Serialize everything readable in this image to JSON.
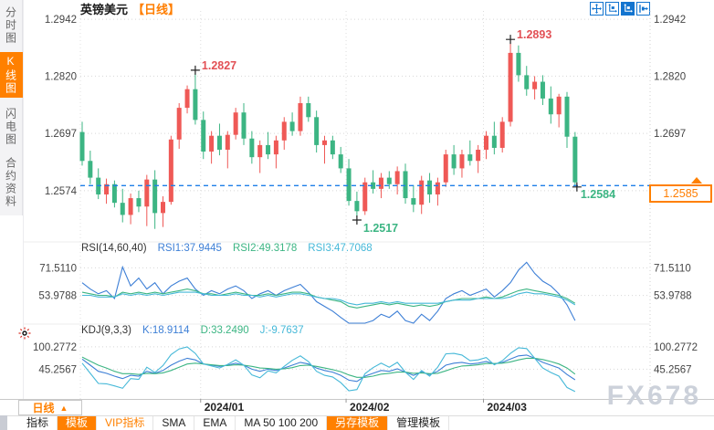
{
  "header": {
    "symbol": "英镑美元",
    "period": "【日线】"
  },
  "sidebar": {
    "items": [
      {
        "label": "分时图",
        "active": false
      },
      {
        "label": "K线图",
        "active": true
      },
      {
        "label": "闪电图",
        "active": false
      },
      {
        "label": "合约资料",
        "active": false
      }
    ]
  },
  "top_buttons": [
    {
      "name": "pan-tool"
    },
    {
      "name": "axis-scale"
    },
    {
      "name": "axis-scale-active"
    },
    {
      "name": "exit-right"
    }
  ],
  "price_box": {
    "value": "1.2585"
  },
  "watermark": "FX678",
  "bottom": {
    "period_button": {
      "label": "日线",
      "arrow": "▲"
    },
    "toolbar": [
      {
        "label": "指标",
        "style": "plain"
      },
      {
        "label": "模板",
        "style": "orange-bg"
      },
      {
        "label": "VIP指标",
        "style": "orange-text"
      },
      {
        "label": "SMA",
        "style": "plain"
      },
      {
        "label": "EMA",
        "style": "plain"
      },
      {
        "label": "MA 50 100 200",
        "style": "plain"
      },
      {
        "label": "另存模板",
        "style": "orange-bg"
      },
      {
        "label": "管理模板",
        "style": "plain"
      }
    ]
  },
  "colors": {
    "accent": "#ff8000",
    "up": "#ef5956",
    "down": "#3cb583",
    "current_line": "#1f7fe8",
    "blue": "#3d7fd6",
    "green": "#3cb583",
    "cyan": "#45b8d8",
    "annotation_red": "#e25055",
    "annotation_green": "#3cb583"
  },
  "chart_data": [
    {
      "type": "candlestick",
      "symbol": "英镑美元",
      "period": "日线",
      "ylim": [
        1.2464,
        1.296
      ],
      "yticks": [
        {
          "v": 1.2942,
          "label": "1.2942"
        },
        {
          "v": 1.282,
          "label": "1.2820"
        },
        {
          "v": 1.2697,
          "label": "1.2697"
        },
        {
          "v": 1.2574,
          "label": "1.2574"
        }
      ],
      "x_ticks": [
        {
          "index": 15,
          "label": "2024/01"
        },
        {
          "index": 33,
          "label": "2024/02"
        },
        {
          "index": 50,
          "label": "2024/03"
        }
      ],
      "current_price": {
        "value": 1.2585,
        "label": "1.2585"
      },
      "annotations": [
        {
          "text": "1.2827",
          "index": 14,
          "price": 1.2827,
          "color": "#e25055",
          "side": "top"
        },
        {
          "text": "1.2893",
          "index": 53,
          "price": 1.2893,
          "color": "#e25055",
          "side": "top"
        },
        {
          "text": "1.2517",
          "index": 34,
          "price": 1.2517,
          "color": "#3cb583",
          "side": "bottom"
        },
        {
          "text": "1.2584",
          "index": 61,
          "price": 1.2584,
          "color": "#3cb583",
          "side": "right-below"
        }
      ],
      "ohlc": [
        [
          1.27,
          1.2722,
          1.2628,
          1.2638
        ],
        [
          1.2638,
          1.266,
          1.2588,
          1.2602
        ],
        [
          1.2602,
          1.2622,
          1.2556,
          1.2566
        ],
        [
          1.2566,
          1.26,
          1.2546,
          1.2588
        ],
        [
          1.2588,
          1.2596,
          1.2538,
          1.2548
        ],
        [
          1.2548,
          1.2578,
          1.2506,
          1.2522
        ],
        [
          1.2522,
          1.2568,
          1.2502,
          1.2558
        ],
        [
          1.2558,
          1.2574,
          1.2528,
          1.254
        ],
        [
          1.254,
          1.2608,
          1.2498,
          1.2598
        ],
        [
          1.2598,
          1.2618,
          1.2492,
          1.2526
        ],
        [
          1.2526,
          1.2562,
          1.2496,
          1.255
        ],
        [
          1.255,
          1.2692,
          1.2544,
          1.2684
        ],
        [
          1.2684,
          1.2762,
          1.2664,
          1.2752
        ],
        [
          1.2752,
          1.28,
          1.274,
          1.2792
        ],
        [
          1.2792,
          1.2827,
          1.2716,
          1.2726
        ],
        [
          1.2726,
          1.2744,
          1.2642,
          1.2658
        ],
        [
          1.2658,
          1.2702,
          1.2632,
          1.2692
        ],
        [
          1.2692,
          1.2718,
          1.265,
          1.2662
        ],
        [
          1.2662,
          1.2702,
          1.2622,
          1.2694
        ],
        [
          1.2694,
          1.2752,
          1.2684,
          1.2742
        ],
        [
          1.2742,
          1.2762,
          1.2672,
          1.2686
        ],
        [
          1.2686,
          1.2702,
          1.2632,
          1.2646
        ],
        [
          1.2646,
          1.2682,
          1.2612,
          1.2672
        ],
        [
          1.2672,
          1.27,
          1.2642,
          1.2652
        ],
        [
          1.2652,
          1.2692,
          1.2622,
          1.2682
        ],
        [
          1.2682,
          1.2732,
          1.2662,
          1.2722
        ],
        [
          1.2722,
          1.2742,
          1.2692,
          1.2702
        ],
        [
          1.2702,
          1.2776,
          1.2692,
          1.2762
        ],
        [
          1.2762,
          1.2776,
          1.2722,
          1.2732
        ],
        [
          1.2732,
          1.2746,
          1.2656,
          1.2672
        ],
        [
          1.2672,
          1.2692,
          1.2632,
          1.2682
        ],
        [
          1.2682,
          1.2692,
          1.2642,
          1.2652
        ],
        [
          1.2652,
          1.2668,
          1.2612,
          1.2622
        ],
        [
          1.2622,
          1.2642,
          1.2542,
          1.2552
        ],
        [
          1.2552,
          1.2572,
          1.2517,
          1.253
        ],
        [
          1.253,
          1.2602,
          1.2522,
          1.2592
        ],
        [
          1.2592,
          1.2618,
          1.2568,
          1.2578
        ],
        [
          1.2578,
          1.2612,
          1.2558,
          1.2602
        ],
        [
          1.2602,
          1.2616,
          1.2578,
          1.2588
        ],
        [
          1.2588,
          1.2626,
          1.2566,
          1.2616
        ],
        [
          1.2616,
          1.2632,
          1.2546,
          1.2558
        ],
        [
          1.2558,
          1.2586,
          1.2528,
          1.2544
        ],
        [
          1.2544,
          1.2606,
          1.2524,
          1.2596
        ],
        [
          1.2596,
          1.2612,
          1.2548,
          1.2566
        ],
        [
          1.2566,
          1.2602,
          1.2542,
          1.2592
        ],
        [
          1.2592,
          1.2662,
          1.2582,
          1.2652
        ],
        [
          1.2652,
          1.2672,
          1.2608,
          1.2622
        ],
        [
          1.2622,
          1.2662,
          1.2602,
          1.2652
        ],
        [
          1.2652,
          1.2682,
          1.2628,
          1.2638
        ],
        [
          1.2638,
          1.2672,
          1.2612,
          1.2662
        ],
        [
          1.2662,
          1.2702,
          1.2642,
          1.2692
        ],
        [
          1.2692,
          1.2722,
          1.2652,
          1.2666
        ],
        [
          1.2666,
          1.2732,
          1.2656,
          1.2722
        ],
        [
          1.2722,
          1.2893,
          1.2712,
          1.287
        ],
        [
          1.287,
          1.2886,
          1.2808,
          1.2822
        ],
        [
          1.2822,
          1.2842,
          1.2778,
          1.2792
        ],
        [
          1.2792,
          1.282,
          1.277,
          1.2808
        ],
        [
          1.2808,
          1.2822,
          1.2758,
          1.2772
        ],
        [
          1.2772,
          1.2798,
          1.2718,
          1.2738
        ],
        [
          1.2738,
          1.2782,
          1.271,
          1.2776
        ],
        [
          1.2776,
          1.2786,
          1.2666,
          1.269
        ],
        [
          1.269,
          1.27,
          1.2584,
          1.2592
        ]
      ]
    },
    {
      "type": "line",
      "title": "RSI(14,60,40)",
      "legend": [
        "RSI1:37.9445",
        "RSI2:49.3178",
        "RSI3:47.7068"
      ],
      "yticks": [
        {
          "v": 71.511,
          "label": "71.5110"
        },
        {
          "v": 53.9788,
          "label": "53.9788"
        }
      ],
      "series": [
        {
          "name": "RSI1",
          "color": "#3d7fd6",
          "values": [
            62,
            58,
            55,
            57,
            52,
            72,
            60,
            65,
            58,
            62,
            55,
            60,
            63,
            65,
            58,
            54,
            57,
            55,
            58,
            60,
            57,
            52,
            55,
            57,
            54,
            57,
            59,
            61,
            56,
            50,
            47,
            44,
            40,
            28,
            24,
            33,
            38,
            42,
            40,
            44,
            38,
            35,
            42,
            38,
            44,
            52,
            55,
            57,
            54,
            56,
            58,
            53,
            57,
            62,
            70,
            75,
            68,
            63,
            60,
            55,
            48,
            38
          ]
        },
        {
          "name": "RSI2",
          "color": "#3cb583",
          "values": [
            56,
            55,
            54,
            54,
            53,
            56,
            55,
            56,
            55,
            56,
            55,
            56,
            57,
            58,
            57,
            55,
            55,
            54,
            55,
            56,
            55,
            54,
            54,
            55,
            54,
            55,
            56,
            56,
            55,
            53,
            52,
            51,
            50,
            47,
            46,
            47,
            48,
            49,
            48,
            49,
            48,
            47,
            48,
            47,
            48,
            50,
            51,
            52,
            52,
            52,
            53,
            52,
            53,
            55,
            57,
            58,
            57,
            56,
            55,
            54,
            52,
            49
          ]
        },
        {
          "name": "RSI3",
          "color": "#45b8d8",
          "values": [
            54,
            54,
            53,
            53,
            53,
            55,
            54,
            55,
            54,
            55,
            54,
            55,
            56,
            56,
            56,
            55,
            54,
            54,
            54,
            55,
            54,
            54,
            53,
            54,
            53,
            54,
            55,
            55,
            54,
            53,
            52,
            52,
            51,
            49,
            48,
            49,
            49,
            50,
            49,
            50,
            49,
            49,
            49,
            49,
            49,
            50,
            51,
            51,
            51,
            52,
            52,
            52,
            52,
            53,
            55,
            56,
            55,
            55,
            54,
            53,
            51,
            48
          ]
        }
      ]
    },
    {
      "type": "line",
      "title": "KDJ(9,3,3)",
      "legend": [
        "K:18.9114",
        "D:33.2490",
        "J:-9.7637"
      ],
      "yticks": [
        {
          "v": 100.2772,
          "label": "100.2772"
        },
        {
          "v": 45.2567,
          "label": "45.2567"
        }
      ],
      "series": [
        {
          "name": "K",
          "color": "#3d7fd6",
          "values": [
            70,
            55,
            40,
            35,
            28,
            22,
            30,
            28,
            40,
            35,
            42,
            55,
            65,
            72,
            68,
            58,
            55,
            52,
            55,
            60,
            55,
            45,
            40,
            45,
            42,
            48,
            55,
            62,
            58,
            48,
            42,
            38,
            30,
            18,
            15,
            28,
            35,
            42,
            40,
            46,
            38,
            30,
            38,
            32,
            40,
            55,
            60,
            62,
            58,
            60,
            64,
            58,
            62,
            70,
            78,
            80,
            72,
            62,
            55,
            48,
            32,
            19
          ]
        },
        {
          "name": "D",
          "color": "#3cb583",
          "values": [
            75,
            65,
            55,
            48,
            40,
            34,
            34,
            32,
            35,
            34,
            36,
            42,
            50,
            58,
            60,
            58,
            56,
            54,
            54,
            56,
            55,
            52,
            48,
            47,
            45,
            46,
            49,
            54,
            55,
            52,
            48,
            44,
            39,
            31,
            25,
            25,
            28,
            33,
            35,
            38,
            38,
            35,
            36,
            34,
            35,
            41,
            48,
            53,
            54,
            56,
            59,
            59,
            60,
            63,
            68,
            72,
            72,
            69,
            64,
            58,
            48,
            33
          ]
        },
        {
          "name": "J",
          "color": "#45b8d8",
          "values": [
            60,
            35,
            10,
            9,
            4,
            -2,
            22,
            20,
            50,
            37,
            54,
            81,
            95,
            100,
            84,
            58,
            53,
            48,
            57,
            68,
            55,
            31,
            24,
            41,
            36,
            52,
            67,
            78,
            64,
            40,
            30,
            26,
            12,
            -8,
            -5,
            34,
            49,
            60,
            50,
            62,
            38,
            20,
            42,
            28,
            50,
            83,
            84,
            80,
            66,
            68,
            74,
            56,
            66,
            84,
            98,
            96,
            72,
            48,
            37,
            28,
            0,
            -10
          ]
        }
      ]
    }
  ]
}
